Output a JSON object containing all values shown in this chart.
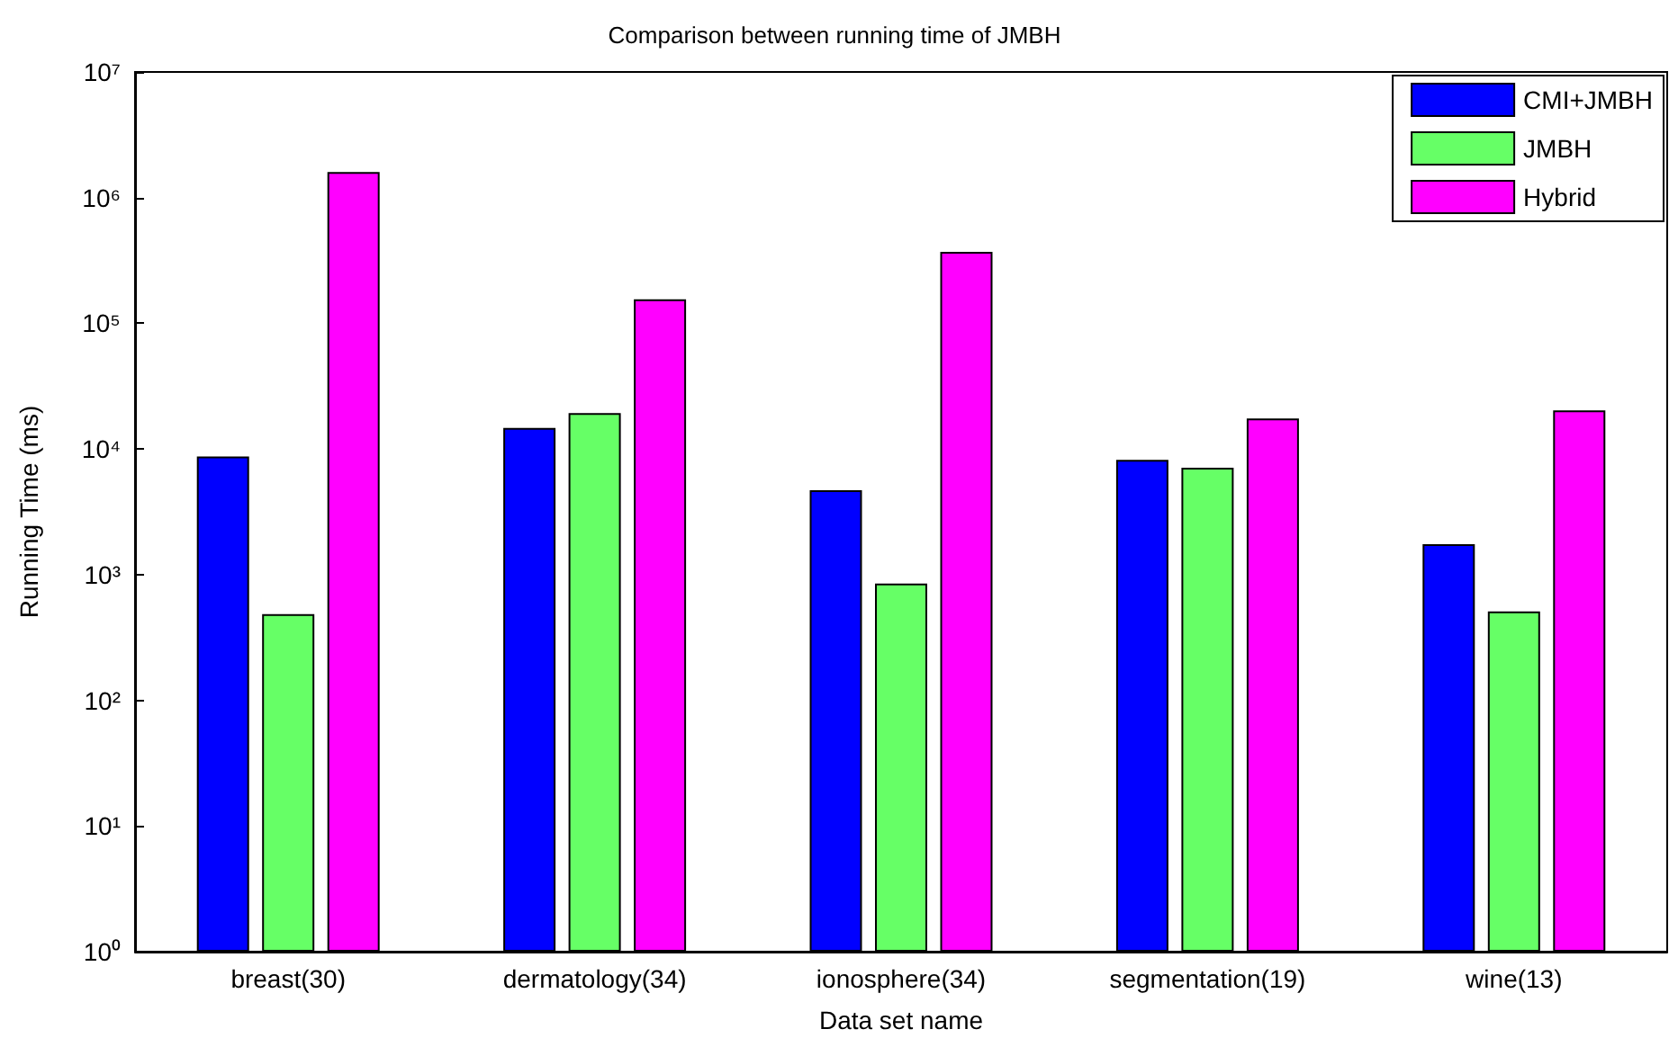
{
  "chart_data": {
    "type": "bar",
    "title": "Comparison between running time of JMBH",
    "xlabel": "Data set name",
    "ylabel": "Running Time (ms)",
    "categories": [
      "breast(30)",
      "dermatology(34)",
      "ionosphere(34)",
      "segmentation(19)",
      "wine(13)"
    ],
    "series": [
      {
        "name": "CMI+JMBH",
        "color": "#0000ff",
        "values": [
          8700,
          14700,
          4700,
          8200,
          1750
        ]
      },
      {
        "name": "JMBH",
        "color": "#66ff66",
        "values": [
          485,
          19300,
          850,
          7100,
          510
        ]
      },
      {
        "name": "Hybrid",
        "color": "#ff00ff",
        "values": [
          1600000,
          155000,
          370000,
          17500,
          20300
        ]
      }
    ],
    "log": "y",
    "ylim": [
      1,
      10000000
    ],
    "yticks": [
      {
        "value": 1,
        "label": "10⁰"
      },
      {
        "value": 10,
        "label": "10¹"
      },
      {
        "value": 100,
        "label": "10²"
      },
      {
        "value": 1000,
        "label": "10³"
      },
      {
        "value": 10000,
        "label": "10⁴"
      },
      {
        "value": 100000,
        "label": "10⁵"
      },
      {
        "value": 1000000,
        "label": "10⁶"
      },
      {
        "value": 10000000,
        "label": "10⁷"
      }
    ],
    "grid": false,
    "legend": "top right"
  }
}
